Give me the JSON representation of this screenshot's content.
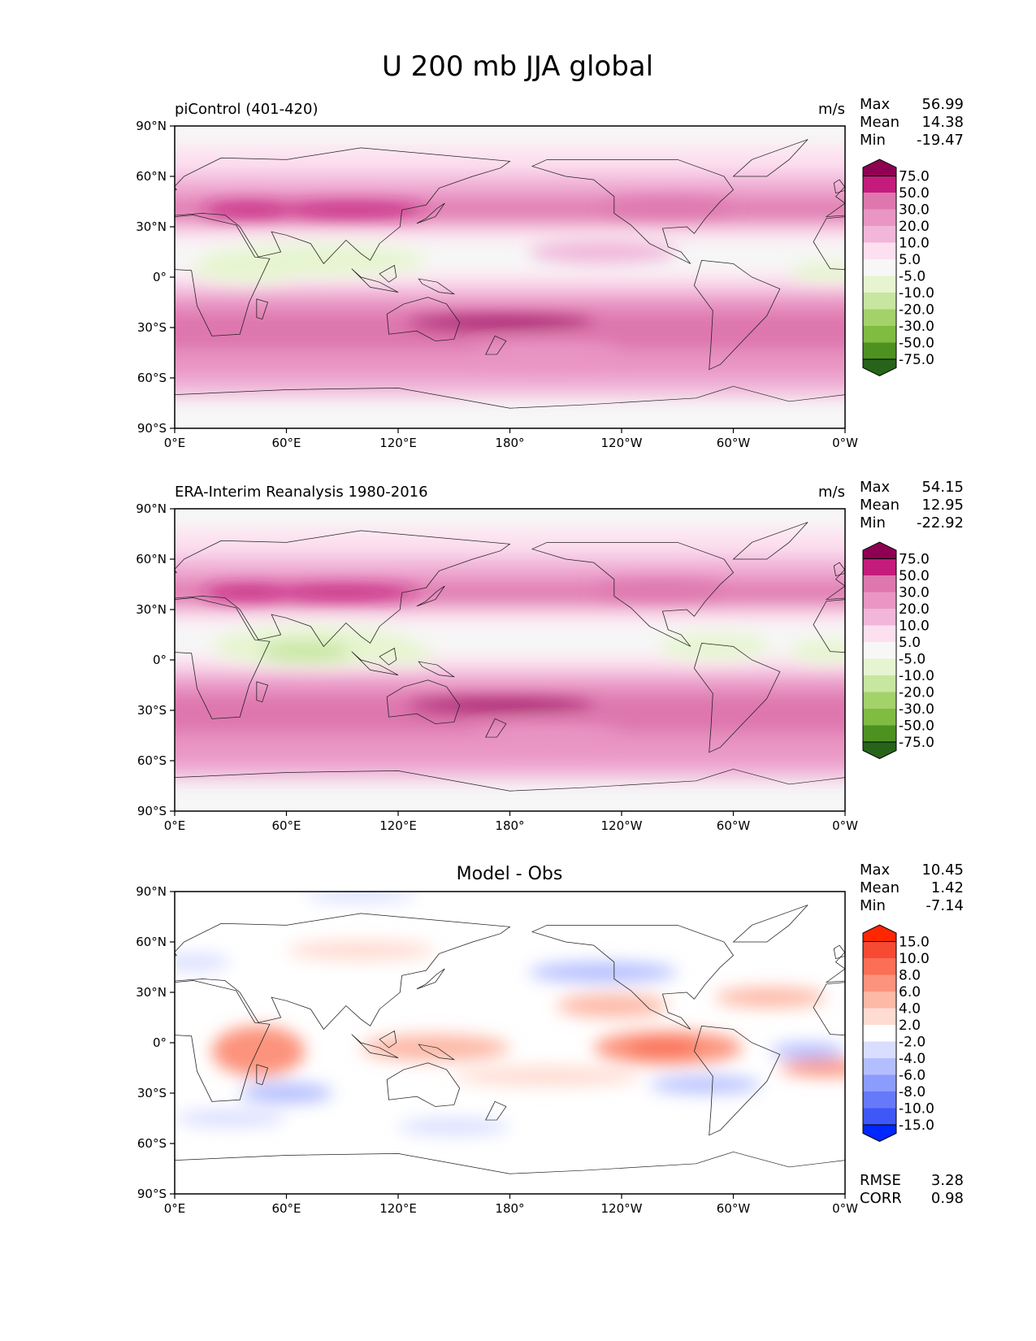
{
  "figure_title": "U 200 mb JJA global",
  "chart_data": [
    {
      "type": "heatmap",
      "panel": "model",
      "title": "piControl (401-420)",
      "units": "m/s",
      "stats": {
        "Max": "56.99",
        "Mean": "14.38",
        "Min": "-19.47"
      },
      "x_ticks": [
        "0°E",
        "60°E",
        "120°E",
        "180°",
        "120°W",
        "60°W",
        "0°W"
      ],
      "y_ticks": [
        "90°N",
        "60°N",
        "30°N",
        "0°",
        "30°S",
        "60°S",
        "90°S"
      ],
      "xlim": [
        0,
        360
      ],
      "ylim": [
        -90,
        90
      ],
      "colorbar": {
        "levels": [
          "75.0",
          "50.0",
          "30.0",
          "20.0",
          "10.0",
          "5.0",
          "-5.0",
          "-10.0",
          "-20.0",
          "-30.0",
          "-50.0",
          "-75.0"
        ],
        "colors": [
          "#8e0152",
          "#c51b7d",
          "#de77ae",
          "#e996c4",
          "#f1b6da",
          "#fde0ef",
          "#f7f7f7",
          "#e6f5d0",
          "#c7e6a0",
          "#a3d26a",
          "#7fbc41",
          "#4d9221",
          "#276419"
        ]
      },
      "field_features": [
        {
          "lat": 40,
          "lon": 95,
          "value": 52
        },
        {
          "lat": -28,
          "lon": 175,
          "value": 55
        },
        {
          "lat": 40,
          "lon": 270,
          "value": 30
        },
        {
          "lat": 10,
          "lon": 75,
          "value": -18
        }
      ]
    },
    {
      "type": "heatmap",
      "panel": "obs",
      "title": "ERA-Interim Reanalysis 1980-2016",
      "units": "m/s",
      "stats": {
        "Max": "54.15",
        "Mean": "12.95",
        "Min": "-22.92"
      },
      "x_ticks": [
        "0°E",
        "60°E",
        "120°E",
        "180°",
        "120°W",
        "60°W",
        "0°W"
      ],
      "y_ticks": [
        "90°N",
        "60°N",
        "30°N",
        "0°",
        "30°S",
        "60°S",
        "90°S"
      ],
      "xlim": [
        0,
        360
      ],
      "ylim": [
        -90,
        90
      ],
      "colorbar": {
        "levels": [
          "75.0",
          "50.0",
          "30.0",
          "20.0",
          "10.0",
          "5.0",
          "-5.0",
          "-10.0",
          "-20.0",
          "-30.0",
          "-50.0",
          "-75.0"
        ],
        "colors": [
          "#8e0152",
          "#c51b7d",
          "#de77ae",
          "#e996c4",
          "#f1b6da",
          "#fde0ef",
          "#f7f7f7",
          "#e6f5d0",
          "#c7e6a0",
          "#a3d26a",
          "#7fbc41",
          "#4d9221",
          "#276419"
        ]
      },
      "field_features": [
        {
          "lat": 40,
          "lon": 90,
          "value": 51
        },
        {
          "lat": -28,
          "lon": 175,
          "value": 54
        },
        {
          "lat": 40,
          "lon": 265,
          "value": 31
        },
        {
          "lat": 8,
          "lon": 72,
          "value": -22
        }
      ]
    },
    {
      "type": "heatmap",
      "panel": "difference",
      "title": "Model - Obs",
      "stats": {
        "Max": "10.45",
        "Mean": "1.42",
        "Min": "-7.14"
      },
      "extra_stats": {
        "RMSE": "3.28",
        "CORR": "0.98"
      },
      "x_ticks": [
        "0°E",
        "60°E",
        "120°E",
        "180°",
        "120°W",
        "60°W",
        "0°W"
      ],
      "y_ticks": [
        "90°N",
        "60°N",
        "30°N",
        "0°",
        "30°S",
        "60°S",
        "90°S"
      ],
      "xlim": [
        0,
        360
      ],
      "ylim": [
        -90,
        90
      ],
      "colorbar": {
        "levels": [
          "15.0",
          "10.0",
          "8.0",
          "6.0",
          "4.0",
          "2.0",
          "-2.0",
          "-4.0",
          "-6.0",
          "-8.0",
          "-10.0",
          "-15.0"
        ],
        "colors": [
          "#ff2600",
          "#f64a33",
          "#fa6f55",
          "#fc937c",
          "#fdb8a6",
          "#fedcd2",
          "#ffffff",
          "#d9deff",
          "#b3beff",
          "#8c9cfd",
          "#6779fb",
          "#4057f8",
          "#0027ff"
        ]
      },
      "field_features": [
        {
          "lat": -5,
          "lon": 265,
          "value": 10
        },
        {
          "lat": -5,
          "lon": 45,
          "value": 8
        },
        {
          "lat": 22,
          "lon": 235,
          "value": 7
        },
        {
          "lat": 40,
          "lon": 230,
          "value": -5
        },
        {
          "lat": -28,
          "lon": 280,
          "value": -5
        }
      ]
    }
  ]
}
